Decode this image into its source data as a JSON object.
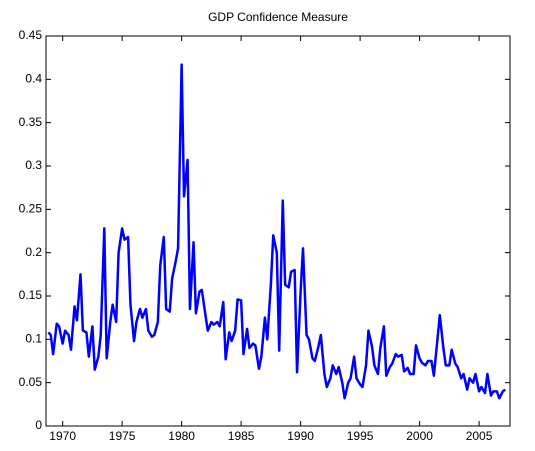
{
  "chart_data": {
    "type": "line",
    "title": "GDP Confidence Measure",
    "x": [
      1968.8,
      1969.0,
      1969.2,
      1969.5,
      1969.7,
      1970.0,
      1970.2,
      1970.5,
      1970.7,
      1971.0,
      1971.2,
      1971.5,
      1971.7,
      1972.0,
      1972.2,
      1972.5,
      1972.7,
      1973.0,
      1973.2,
      1973.5,
      1973.7,
      1974.0,
      1974.2,
      1974.5,
      1974.7,
      1975.0,
      1975.2,
      1975.5,
      1975.7,
      1976.0,
      1976.2,
      1976.5,
      1976.7,
      1977.0,
      1977.2,
      1977.5,
      1977.7,
      1978.0,
      1978.2,
      1978.5,
      1978.7,
      1979.0,
      1979.2,
      1979.5,
      1979.7,
      1980.0,
      1980.2,
      1980.5,
      1980.7,
      1981.0,
      1981.2,
      1981.5,
      1981.7,
      1982.0,
      1982.2,
      1982.5,
      1982.7,
      1983.0,
      1983.2,
      1983.5,
      1983.7,
      1984.0,
      1984.2,
      1984.5,
      1984.7,
      1985.0,
      1985.2,
      1985.5,
      1985.7,
      1986.0,
      1986.2,
      1986.5,
      1986.7,
      1987.0,
      1987.2,
      1987.5,
      1987.7,
      1988.0,
      1988.2,
      1988.5,
      1988.7,
      1989.0,
      1989.2,
      1989.5,
      1989.7,
      1990.0,
      1990.2,
      1990.5,
      1990.7,
      1991.0,
      1991.2,
      1991.5,
      1991.7,
      1992.0,
      1992.2,
      1992.5,
      1992.7,
      1993.0,
      1993.2,
      1993.5,
      1993.7,
      1994.0,
      1994.2,
      1994.5,
      1994.7,
      1995.0,
      1995.2,
      1995.5,
      1995.7,
      1996.0,
      1996.2,
      1996.5,
      1996.7,
      1997.0,
      1997.2,
      1997.5,
      1997.7,
      1998.0,
      1998.2,
      1998.5,
      1998.7,
      1999.0,
      1999.2,
      1999.5,
      1999.7,
      2000.0,
      2000.2,
      2000.5,
      2000.7,
      2001.0,
      2001.2,
      2001.5,
      2001.7,
      2002.0,
      2002.2,
      2002.5,
      2002.7,
      2003.0,
      2003.2,
      2003.5,
      2003.7,
      2004.0,
      2004.2,
      2004.5,
      2004.7,
      2005.0,
      2005.2,
      2005.5,
      2005.7,
      2006.0,
      2006.2,
      2006.5,
      2006.7,
      2007.0,
      2007.2
    ],
    "series": [
      {
        "color": "#0000ff",
        "values": [
          0.108,
          0.105,
          0.083,
          0.118,
          0.115,
          0.095,
          0.11,
          0.105,
          0.088,
          0.138,
          0.122,
          0.175,
          0.11,
          0.108,
          0.08,
          0.115,
          0.065,
          0.08,
          0.105,
          0.228,
          0.078,
          0.12,
          0.14,
          0.12,
          0.2,
          0.228,
          0.215,
          0.218,
          0.14,
          0.098,
          0.12,
          0.135,
          0.125,
          0.135,
          0.11,
          0.103,
          0.105,
          0.12,
          0.185,
          0.218,
          0.135,
          0.132,
          0.17,
          0.19,
          0.205,
          0.417,
          0.265,
          0.307,
          0.135,
          0.212,
          0.13,
          0.155,
          0.157,
          0.128,
          0.11,
          0.12,
          0.117,
          0.12,
          0.115,
          0.143,
          0.077,
          0.108,
          0.098,
          0.11,
          0.146,
          0.145,
          0.083,
          0.112,
          0.09,
          0.095,
          0.093,
          0.066,
          0.08,
          0.125,
          0.1,
          0.163,
          0.22,
          0.2,
          0.087,
          0.26,
          0.163,
          0.16,
          0.178,
          0.18,
          0.062,
          0.155,
          0.205,
          0.105,
          0.1,
          0.078,
          0.075,
          0.092,
          0.105,
          0.06,
          0.045,
          0.055,
          0.07,
          0.06,
          0.068,
          0.05,
          0.032,
          0.05,
          0.055,
          0.08,
          0.055,
          0.048,
          0.045,
          0.07,
          0.11,
          0.092,
          0.07,
          0.06,
          0.09,
          0.115,
          0.058,
          0.068,
          0.072,
          0.083,
          0.08,
          0.082,
          0.063,
          0.067,
          0.06,
          0.06,
          0.093,
          0.078,
          0.073,
          0.07,
          0.075,
          0.075,
          0.058,
          0.1,
          0.128,
          0.09,
          0.07,
          0.07,
          0.088,
          0.072,
          0.068,
          0.055,
          0.06,
          0.042,
          0.055,
          0.05,
          0.06,
          0.04,
          0.045,
          0.038,
          0.06,
          0.035,
          0.04,
          0.04,
          0.032,
          0.04,
          0.042
        ]
      }
    ],
    "xlim": [
      1968.6,
      2007.6
    ],
    "xticks": [
      1970,
      1975,
      1980,
      1985,
      1990,
      1995,
      2000,
      2005
    ],
    "ylim": [
      0,
      0.45
    ],
    "yticks": [
      0,
      0.05,
      0.1,
      0.15,
      0.2,
      0.25,
      0.3,
      0.35,
      0.4,
      0.45
    ]
  }
}
